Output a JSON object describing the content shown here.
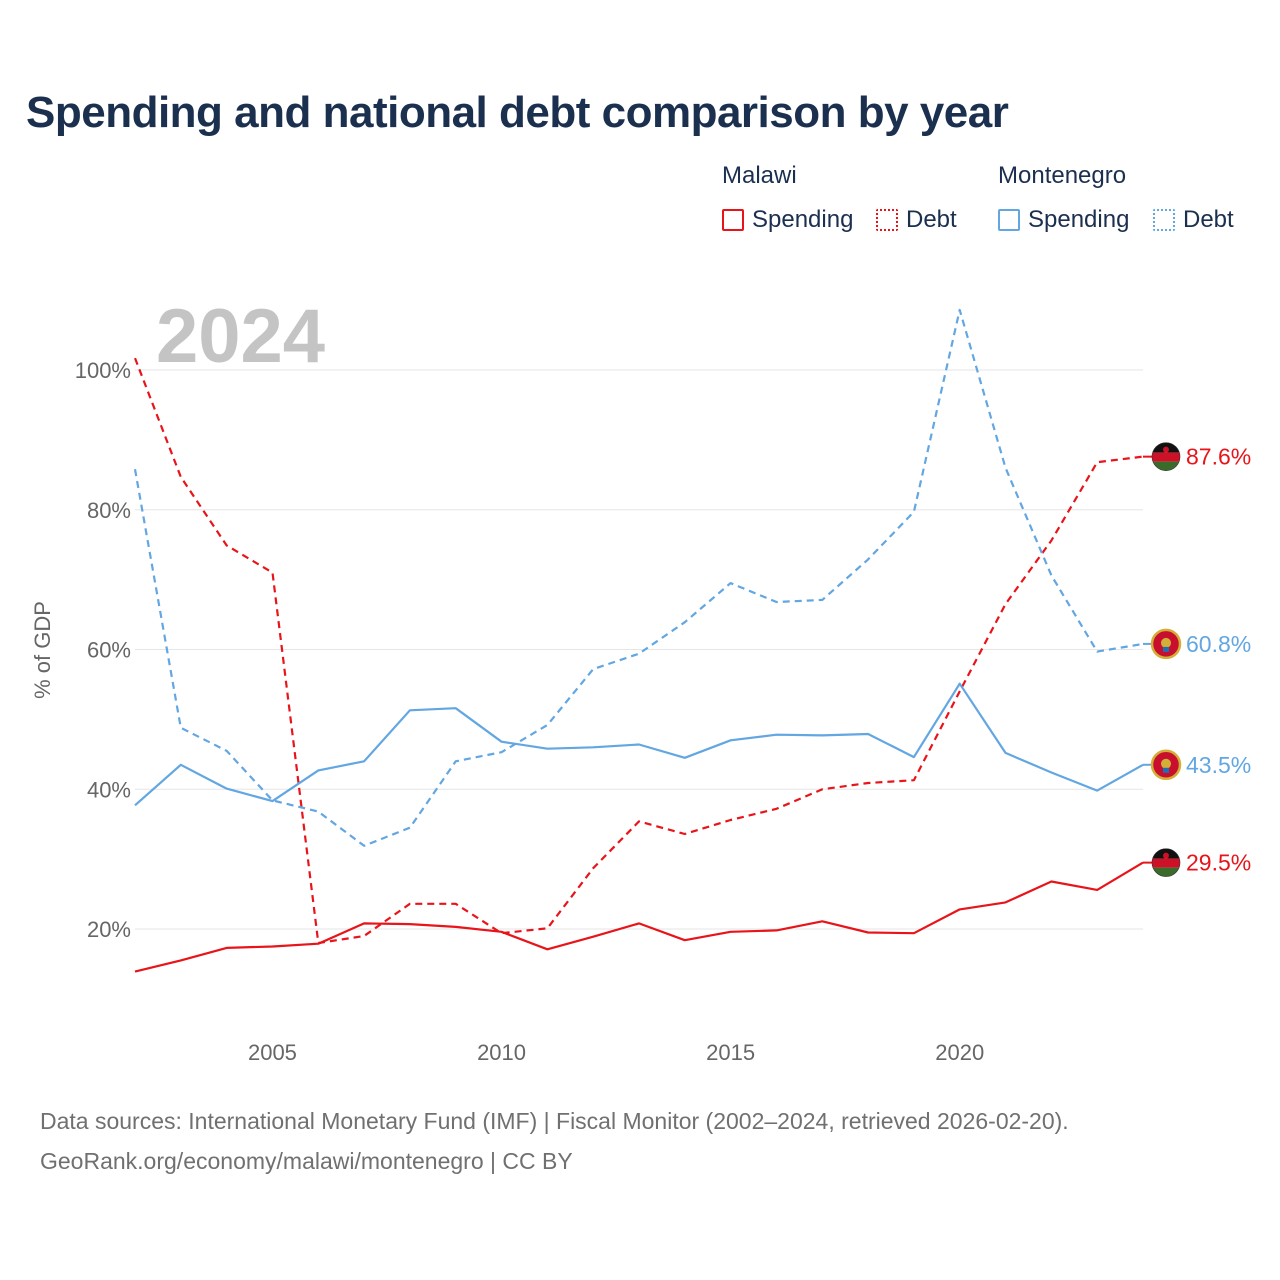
{
  "title": "Spending and national debt comparison by year",
  "legend": {
    "groups": [
      {
        "name": "Malawi",
        "items": [
          "Spending",
          "Debt"
        ]
      },
      {
        "name": "Montenegro",
        "items": [
          "Spending",
          "Debt"
        ]
      }
    ]
  },
  "footer": {
    "line1": "Data sources: International Monetary Fund (IMF) | Fiscal Monitor (2002–2024, retrieved 2026-02-20).",
    "line2": "GeoRank.org/economy/malawi/montenegro | CC BY"
  },
  "colors": {
    "malawi": "#e8141a",
    "montenegro": "#62a6e2",
    "grid": "#e6e6e6",
    "axis_text": "#666666",
    "year_label": "#c4c4c4"
  },
  "chart_data": {
    "type": "line",
    "year_label": "2024",
    "ylabel": "% of GDP",
    "xlim": [
      2002,
      2024
    ],
    "ylim": [
      0,
      110
    ],
    "x_ticks": [
      2005,
      2010,
      2015,
      2020
    ],
    "x_tick_labels": [
      "2005",
      "2010",
      "2015",
      "2020"
    ],
    "y_ticks": [
      20,
      40,
      60,
      80,
      100
    ],
    "y_tick_labels": [
      "20%",
      "40%",
      "60%",
      "80%",
      "100%"
    ],
    "x": [
      2002,
      2003,
      2004,
      2005,
      2006,
      2007,
      2008,
      2009,
      2010,
      2011,
      2012,
      2013,
      2014,
      2015,
      2016,
      2017,
      2018,
      2019,
      2020,
      2021,
      2022,
      2023,
      2024
    ],
    "series": [
      {
        "name": "Malawi Spending",
        "country": "Malawi",
        "metric": "Spending",
        "style": "solid",
        "color": "#e8141a",
        "values": [
          13.9,
          15.5,
          17.3,
          17.5,
          17.9,
          20.8,
          20.7,
          20.3,
          19.6,
          17.1,
          18.9,
          20.8,
          18.4,
          19.6,
          19.8,
          21.1,
          19.5,
          19.4,
          22.8,
          23.8,
          26.8,
          25.6,
          29.5
        ],
        "end_label": "29.5%"
      },
      {
        "name": "Malawi Debt",
        "country": "Malawi",
        "metric": "Debt",
        "style": "dashed",
        "color": "#e8141a",
        "values": [
          101.7,
          84.7,
          74.9,
          71.0,
          18.0,
          19.0,
          23.6,
          23.6,
          19.4,
          20.1,
          28.7,
          35.4,
          33.6,
          35.6,
          37.2,
          40.0,
          40.9,
          41.3,
          54.0,
          66.5,
          75.6,
          86.8,
          87.6
        ],
        "end_label": "87.6%"
      },
      {
        "name": "Montenegro Spending",
        "country": "Montenegro",
        "metric": "Spending",
        "style": "solid",
        "color": "#62a6e2",
        "values": [
          37.7,
          43.5,
          40.1,
          38.3,
          42.7,
          44.0,
          51.3,
          51.6,
          46.8,
          45.8,
          46.0,
          46.4,
          44.5,
          47.0,
          47.8,
          47.7,
          47.9,
          44.6,
          55.1,
          45.2,
          42.4,
          39.8,
          43.5
        ],
        "end_label": "43.5%"
      },
      {
        "name": "Montenegro Debt",
        "country": "Montenegro",
        "metric": "Debt",
        "style": "dashed",
        "color": "#62a6e2",
        "values": [
          85.8,
          48.8,
          45.5,
          38.4,
          36.8,
          31.9,
          34.5,
          44.0,
          45.3,
          49.2,
          57.2,
          59.4,
          63.9,
          69.5,
          66.8,
          67.1,
          72.9,
          79.7,
          108.6,
          86.0,
          70.6,
          59.7,
          60.8
        ],
        "end_label": "60.8%"
      }
    ]
  }
}
